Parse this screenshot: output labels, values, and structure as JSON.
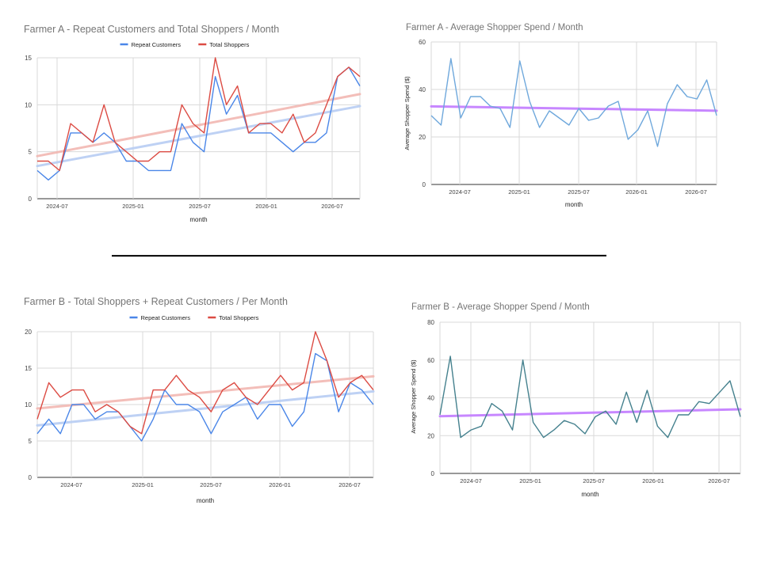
{
  "chart_data": [
    {
      "type": "line",
      "title": "Farmer A - Repeat Customers and Total Shoppers / Month",
      "xlabel": "month",
      "ylabel": "",
      "ylim": [
        0,
        15
      ],
      "yticks": [
        0,
        5,
        10,
        15
      ],
      "x_start": "2024-04",
      "x_tick_labels": [
        "2024-07",
        "2025-01",
        "2025-07",
        "2026-01",
        "2026-07"
      ],
      "legend_position": "top",
      "grid": true,
      "series": [
        {
          "name": "Repeat Customers",
          "color": "#4a86e8",
          "trend_color": "#b7cdf3",
          "values": [
            3,
            2,
            3,
            7,
            7,
            6,
            7,
            6,
            4,
            4,
            3,
            3,
            3,
            8,
            6,
            5,
            13,
            9,
            11,
            7,
            7,
            7,
            6,
            5,
            6,
            6,
            7,
            13,
            14,
            12
          ]
        },
        {
          "name": "Total Shoppers",
          "color": "#dc4b43",
          "trend_color": "#f2b7b2",
          "values": [
            4,
            4,
            3,
            8,
            7,
            6,
            10,
            6,
            5,
            4,
            4,
            5,
            5,
            10,
            8,
            7,
            15,
            10,
            12,
            7,
            8,
            8,
            7,
            9,
            6,
            7,
            10,
            13,
            14,
            13
          ]
        }
      ]
    },
    {
      "type": "line",
      "title": "Farmer A - Average Shopper Spend / Month",
      "xlabel": "month",
      "ylabel": "Average Shopper Spend ($)",
      "ylim": [
        0,
        60
      ],
      "yticks": [
        0,
        20,
        40,
        60
      ],
      "x_start": "2024-04",
      "x_tick_labels": [
        "2024-07",
        "2025-01",
        "2025-07",
        "2026-01",
        "2026-07"
      ],
      "legend_position": "none",
      "grid": true,
      "series": [
        {
          "name": "",
          "color": "#6fa8dc",
          "trend_color": "#c27bff",
          "values": [
            29,
            25,
            53,
            28,
            37,
            37,
            33,
            32,
            24,
            52,
            35,
            24,
            31,
            28,
            25,
            32,
            27,
            28,
            33,
            35,
            19,
            23,
            31,
            16,
            34,
            42,
            37,
            36,
            44,
            29
          ]
        }
      ]
    },
    {
      "type": "line",
      "title": "Farmer B - Total Shoppers  + Repeat Customers / Per Month",
      "xlabel": "month",
      "ylabel": "",
      "ylim": [
        0,
        20
      ],
      "yticks": [
        0,
        5,
        10,
        15,
        20
      ],
      "x_start": "2024-04",
      "x_tick_labels": [
        "2024-07",
        "2025-01",
        "2025-07",
        "2026-01",
        "2026-07"
      ],
      "legend_position": "top",
      "grid": true,
      "series": [
        {
          "name": "Repeat Customers",
          "color": "#4a86e8",
          "trend_color": "#b7cdf3",
          "values": [
            6,
            8,
            6,
            10,
            10,
            8,
            9,
            9,
            7,
            5,
            8,
            12,
            10,
            10,
            9,
            6,
            9,
            10,
            11,
            8,
            10,
            10,
            7,
            9,
            17,
            16,
            9,
            13,
            12,
            10
          ]
        },
        {
          "name": "Total Shoppers",
          "color": "#dc4b43",
          "trend_color": "#f2b7b2",
          "values": [
            8,
            13,
            11,
            12,
            12,
            9,
            10,
            9,
            7,
            6,
            12,
            12,
            14,
            12,
            11,
            9,
            12,
            13,
            11,
            10,
            12,
            14,
            12,
            13,
            20,
            16,
            11,
            13,
            14,
            12
          ]
        }
      ]
    },
    {
      "type": "line",
      "title": "Farmer B - Average Shopper Spend / Month",
      "xlabel": "month",
      "ylabel": "Average Shopper Spend ($)",
      "ylim": [
        0,
        80
      ],
      "yticks": [
        0,
        20,
        40,
        60,
        80
      ],
      "x_start": "2024-04",
      "x_tick_labels": [
        "2024-07",
        "2025-01",
        "2025-07",
        "2026-01",
        "2026-07"
      ],
      "legend_position": "none",
      "grid": true,
      "series": [
        {
          "name": "",
          "color": "#45818e",
          "trend_color": "#c27bff",
          "values": [
            31,
            62,
            19,
            23,
            25,
            37,
            33,
            23,
            60,
            27,
            19,
            23,
            28,
            26,
            21,
            30,
            33,
            26,
            43,
            27,
            44,
            25,
            19,
            31,
            31,
            38,
            37,
            43,
            49,
            30
          ]
        }
      ]
    }
  ]
}
